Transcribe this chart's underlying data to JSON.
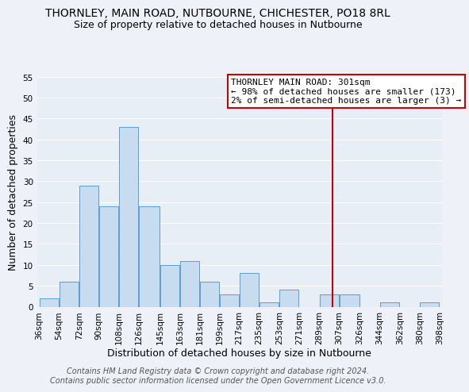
{
  "title": "THORNLEY, MAIN ROAD, NUTBOURNE, CHICHESTER, PO18 8RL",
  "subtitle": "Size of property relative to detached houses in Nutbourne",
  "xlabel": "Distribution of detached houses by size in Nutbourne",
  "ylabel": "Number of detached properties",
  "bar_left_edges": [
    36,
    54,
    72,
    90,
    108,
    126,
    145,
    163,
    181,
    199,
    217,
    235,
    253,
    271,
    289,
    307,
    326,
    344,
    362,
    380
  ],
  "bar_widths": [
    18,
    18,
    18,
    18,
    18,
    19,
    18,
    18,
    18,
    18,
    18,
    18,
    18,
    18,
    18,
    19,
    18,
    18,
    18,
    18
  ],
  "bar_heights": [
    2,
    6,
    29,
    24,
    43,
    24,
    10,
    11,
    6,
    3,
    8,
    1,
    4,
    0,
    3,
    3,
    0,
    1,
    0,
    1
  ],
  "bar_color": "#c8dcf0",
  "bar_edge_color": "#5a9fd4",
  "reference_line_x": 301,
  "reference_line_color": "#cc0000",
  "tick_labels": [
    "36sqm",
    "54sqm",
    "72sqm",
    "90sqm",
    "108sqm",
    "126sqm",
    "145sqm",
    "163sqm",
    "181sqm",
    "199sqm",
    "217sqm",
    "235sqm",
    "253sqm",
    "271sqm",
    "289sqm",
    "307sqm",
    "326sqm",
    "344sqm",
    "362sqm",
    "380sqm",
    "398sqm"
  ],
  "ylim": [
    0,
    55
  ],
  "yticks": [
    0,
    5,
    10,
    15,
    20,
    25,
    30,
    35,
    40,
    45,
    50,
    55
  ],
  "annotation_title": "THORNLEY MAIN ROAD: 301sqm",
  "annotation_line1": "← 98% of detached houses are smaller (173)",
  "annotation_line2": "2% of semi-detached houses are larger (3) →",
  "footer_line1": "Contains HM Land Registry data © Crown copyright and database right 2024.",
  "footer_line2": "Contains public sector information licensed under the Open Government Licence v3.0.",
  "background_color": "#eef2f8",
  "plot_bg_color": "#e8eef6",
  "grid_color": "#ffffff",
  "title_fontsize": 10,
  "subtitle_fontsize": 9,
  "axis_label_fontsize": 9,
  "tick_fontsize": 7.5,
  "footer_fontsize": 7,
  "annotation_fontsize": 8
}
